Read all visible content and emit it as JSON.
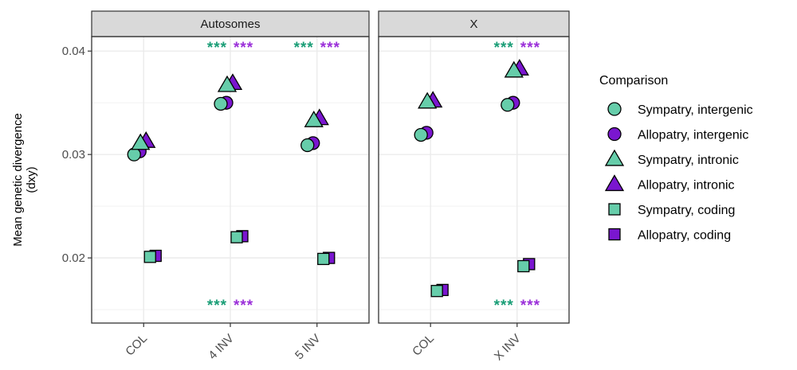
{
  "chart_data": {
    "type": "scatter",
    "ylabel_lines": [
      "Mean genetic divergence",
      "(dxy)"
    ],
    "ylim": [
      0.0137,
      0.0414
    ],
    "yticks": [
      0.02,
      0.03,
      0.04
    ],
    "ytick_labels": [
      "0.02",
      "0.03",
      "0.04"
    ],
    "grid": true,
    "legend": {
      "title": "Comparison",
      "position": "right",
      "entries": [
        {
          "label": "Sympatry, intergenic",
          "shape": "circle",
          "color": "#66CDAA"
        },
        {
          "label": "Allopatry, intergenic",
          "shape": "circle",
          "color": "#7A16CF"
        },
        {
          "label": "Sympatry, intronic",
          "shape": "triangle",
          "color": "#66CDAA"
        },
        {
          "label": "Allopatry, intronic",
          "shape": "triangle",
          "color": "#7A16CF"
        },
        {
          "label": "Sympatry, coding",
          "shape": "square",
          "color": "#66CDAA"
        },
        {
          "label": "Allopatry, coding",
          "shape": "square",
          "color": "#7A16CF"
        }
      ]
    },
    "colors": {
      "sympatry": "#66CDAA",
      "allopatry": "#7A16CF",
      "star_sympatry": "#1B9E77",
      "star_allopatry": "#9B30D9"
    },
    "panels": [
      {
        "strip": "Autosomes",
        "categories": [
          "COL",
          "4 INV",
          "5 INV"
        ],
        "values": {
          "Sympatry, intergenic": [
            0.03,
            0.0349,
            0.0309
          ],
          "Allopatry, intergenic": [
            0.0303,
            0.035,
            0.0311
          ],
          "Sympatry, intronic": [
            0.0311,
            0.0367,
            0.0333
          ],
          "Allopatry, intronic": [
            0.0313,
            0.0369,
            0.0335
          ],
          "Sympatry, coding": [
            0.0201,
            0.022,
            0.0199
          ],
          "Allopatry, coding": [
            0.0202,
            0.0221,
            0.02
          ]
        },
        "top_annotations": [
          "",
          "*** ***",
          "*** ***"
        ],
        "bottom_annotations": [
          "",
          "*** ***",
          ""
        ]
      },
      {
        "strip": "X",
        "categories": [
          "COL",
          "X INV"
        ],
        "values": {
          "Sympatry, intergenic": [
            0.0319,
            0.0348
          ],
          "Allopatry, intergenic": [
            0.0321,
            0.035
          ],
          "Sympatry, intronic": [
            0.0351,
            0.0381
          ],
          "Allopatry, intronic": [
            0.0352,
            0.0383
          ],
          "Sympatry, coding": [
            0.0168,
            0.0192
          ],
          "Allopatry, coding": [
            0.0169,
            0.0194
          ]
        },
        "top_annotations": [
          "",
          "*** ***"
        ],
        "bottom_annotations": [
          "",
          "*** ***"
        ]
      }
    ]
  }
}
